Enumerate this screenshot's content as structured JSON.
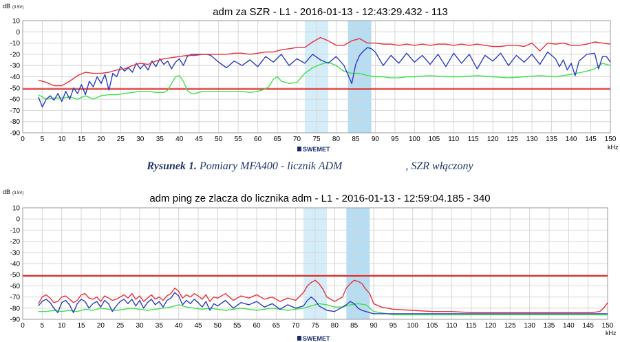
{
  "caption": {
    "prefix": "Rysunek 1.",
    "text": "Pomiary MFA400 - licznik ADM",
    "suffix": ", SZR włączony"
  },
  "logo_text": "SWEMET",
  "colors": {
    "max": "#e8303a",
    "actual": "#2a3cc0",
    "min": "#3ee04a",
    "threshold": "#e02020",
    "band_light": "#cdeaf7",
    "band_dark": "#a9d7f0",
    "grid": "#d6d6d6"
  },
  "chart_data": [
    {
      "type": "line",
      "title": "adm za SZR - L1 - 2016-01-13  - 12:43:29.432 - 113",
      "ylabel": "dB",
      "ylabel_sub": "(3.5V)",
      "xlabel": "kHz",
      "xlim": [
        0,
        150
      ],
      "ylim": [
        -90,
        10
      ],
      "xticks": [
        0,
        5,
        10,
        15,
        20,
        25,
        30,
        35,
        40,
        45,
        50,
        55,
        60,
        65,
        70,
        75,
        80,
        85,
        90,
        95,
        100,
        105,
        110,
        115,
        120,
        125,
        130,
        135,
        140,
        145,
        150
      ],
      "yticks": [
        10,
        0,
        -10,
        -20,
        -30,
        -40,
        -50,
        -60,
        -70,
        -80,
        -90
      ],
      "grid": true,
      "threshold": -51,
      "bands": [
        [
          72,
          78
        ],
        [
          83,
          89
        ]
      ],
      "series": [
        {
          "key": "max",
          "x": [
            4,
            6,
            8,
            10,
            12,
            14,
            16,
            18,
            20,
            22,
            24,
            26,
            28,
            30,
            32,
            34,
            36,
            38,
            40,
            42,
            44,
            46,
            48,
            50,
            52,
            54,
            56,
            58,
            60,
            62,
            64,
            66,
            68,
            70,
            72,
            74,
            76,
            78,
            80,
            82,
            84,
            86,
            88,
            90,
            92,
            94,
            96,
            98,
            100,
            102,
            104,
            106,
            108,
            110,
            112,
            114,
            116,
            118,
            120,
            122,
            124,
            126,
            128,
            130,
            132,
            134,
            136,
            138,
            140,
            142,
            144,
            146,
            148,
            150
          ],
          "y": [
            -43,
            -45,
            -48,
            -48,
            -44,
            -39,
            -36,
            -37,
            -37,
            -36,
            -34,
            -33,
            -30,
            -28,
            -29,
            -26,
            -24,
            -23,
            -22,
            -21,
            -21,
            -20,
            -20,
            -20,
            -20,
            -19,
            -19,
            -20,
            -19,
            -18,
            -18,
            -16,
            -15,
            -14,
            -14,
            -9,
            -5,
            -8,
            -12,
            -12,
            -8,
            -6,
            -10,
            -10,
            -11,
            -11,
            -12,
            -11,
            -12,
            -11,
            -12,
            -11,
            -11,
            -12,
            -11,
            -12,
            -11,
            -12,
            -13,
            -13,
            -12,
            -12,
            -13,
            -10,
            -17,
            -10,
            -11,
            -10,
            -12,
            -12,
            -11,
            -9,
            -10,
            -11
          ]
        },
        {
          "key": "actual",
          "x": [
            4,
            5,
            6,
            7,
            8,
            9,
            10,
            11,
            12,
            13,
            14,
            15,
            16,
            17,
            18,
            19,
            20,
            21,
            22,
            23,
            24,
            25,
            26,
            27,
            28,
            29,
            30,
            31,
            32,
            33,
            34,
            35,
            36,
            37,
            38,
            39,
            40,
            41,
            42,
            43,
            44,
            45,
            46,
            47,
            48,
            49,
            50,
            52,
            54,
            56,
            58,
            60,
            62,
            64,
            66,
            68,
            70,
            72,
            74,
            76,
            78,
            80,
            82,
            83,
            84,
            85,
            86,
            87,
            88,
            89,
            90,
            92,
            94,
            96,
            98,
            100,
            102,
            104,
            106,
            108,
            110,
            112,
            114,
            116,
            118,
            120,
            122,
            124,
            126,
            128,
            130,
            132,
            134,
            136,
            137,
            138,
            139,
            140,
            141,
            142,
            144,
            146,
            147,
            148,
            149,
            150
          ],
          "y": [
            -58,
            -67,
            -60,
            -57,
            -61,
            -55,
            -62,
            -53,
            -60,
            -50,
            -55,
            -47,
            -56,
            -44,
            -49,
            -40,
            -46,
            -38,
            -52,
            -37,
            -40,
            -31,
            -35,
            -32,
            -36,
            -28,
            -33,
            -29,
            -34,
            -26,
            -31,
            -24,
            -29,
            -26,
            -33,
            -27,
            -24,
            -30,
            -22,
            -20,
            -20,
            -20,
            -20,
            -20,
            -21,
            -24,
            -27,
            -32,
            -26,
            -30,
            -25,
            -31,
            -22,
            -27,
            -20,
            -30,
            -24,
            -28,
            -20,
            -25,
            -28,
            -22,
            -30,
            -38,
            -46,
            -29,
            -21,
            -17,
            -14,
            -15,
            -18,
            -30,
            -21,
            -28,
            -19,
            -27,
            -21,
            -29,
            -20,
            -31,
            -19,
            -28,
            -20,
            -33,
            -21,
            -26,
            -19,
            -30,
            -21,
            -27,
            -20,
            -29,
            -18,
            -24,
            -31,
            -25,
            -34,
            -28,
            -39,
            -26,
            -20,
            -19,
            -33,
            -22,
            -22,
            -27
          ]
        },
        {
          "key": "min",
          "x": [
            4,
            6,
            8,
            10,
            12,
            14,
            16,
            18,
            20,
            22,
            24,
            26,
            28,
            30,
            32,
            34,
            36,
            37,
            38,
            39,
            40,
            41,
            42,
            43,
            44,
            46,
            48,
            50,
            52,
            54,
            56,
            58,
            60,
            62,
            63,
            64,
            65,
            66,
            68,
            70,
            72,
            74,
            76,
            78,
            80,
            82,
            84,
            86,
            88,
            90,
            92,
            94,
            96,
            98,
            100,
            104,
            108,
            112,
            116,
            120,
            124,
            128,
            132,
            136,
            140,
            144,
            146,
            148,
            150
          ],
          "y": [
            -56,
            -60,
            -59,
            -59,
            -58,
            -60,
            -57,
            -60,
            -57,
            -56,
            -56,
            -55,
            -54,
            -53,
            -53,
            -54,
            -54,
            -52,
            -46,
            -40,
            -39,
            -44,
            -52,
            -55,
            -55,
            -53,
            -53,
            -53,
            -53,
            -53,
            -53,
            -54,
            -53,
            -51,
            -48,
            -42,
            -40,
            -44,
            -46,
            -45,
            -37,
            -32,
            -29,
            -27,
            -30,
            -35,
            -37,
            -37,
            -39,
            -40,
            -40,
            -41,
            -41,
            -40,
            -40,
            -39,
            -40,
            -40,
            -39,
            -40,
            -41,
            -40,
            -39,
            -40,
            -38,
            -35,
            -33,
            -28,
            -30
          ]
        }
      ]
    },
    {
      "type": "line",
      "title": "adm ping ze zlacza do licznika adm - L1 - 2016-01-13  - 12:59:04.185 - 340",
      "ylabel": "dB",
      "ylabel_sub": "(3.5V)",
      "xlabel": "kHz",
      "xlim": [
        0,
        150
      ],
      "ylim": [
        -90,
        10
      ],
      "xticks": [
        0,
        5,
        10,
        15,
        20,
        25,
        30,
        35,
        40,
        45,
        50,
        55,
        60,
        65,
        70,
        75,
        80,
        85,
        90,
        95,
        100,
        105,
        110,
        115,
        120,
        125,
        130,
        135,
        140,
        145,
        150
      ],
      "yticks": [
        10,
        0,
        -10,
        -20,
        -30,
        -40,
        -50,
        -60,
        -70,
        -80,
        -90
      ],
      "grid": true,
      "threshold": -51,
      "bands": [
        [
          72,
          78
        ],
        [
          83,
          89
        ]
      ],
      "series": [
        {
          "key": "max",
          "x": [
            4,
            5,
            6,
            7,
            8,
            9,
            10,
            11,
            12,
            13,
            14,
            15,
            16,
            17,
            18,
            19,
            20,
            21,
            22,
            23,
            24,
            25,
            26,
            27,
            28,
            29,
            30,
            31,
            32,
            33,
            34,
            35,
            36,
            37,
            38,
            39,
            40,
            41,
            42,
            43,
            44,
            45,
            46,
            47,
            48,
            49,
            50,
            52,
            54,
            56,
            58,
            60,
            62,
            64,
            66,
            68,
            70,
            72,
            73,
            74,
            75,
            76,
            77,
            78,
            80,
            82,
            83,
            84,
            85,
            86,
            87,
            88,
            89,
            90,
            92,
            95,
            100,
            105,
            110,
            115,
            120,
            125,
            130,
            135,
            140,
            145,
            146,
            148,
            149,
            150
          ],
          "y": [
            -76,
            -70,
            -68,
            -71,
            -75,
            -74,
            -70,
            -69,
            -72,
            -75,
            -73,
            -68,
            -67,
            -71,
            -72,
            -70,
            -74,
            -69,
            -71,
            -73,
            -72,
            -70,
            -68,
            -71,
            -67,
            -72,
            -69,
            -74,
            -71,
            -68,
            -72,
            -70,
            -73,
            -69,
            -67,
            -62,
            -65,
            -71,
            -68,
            -70,
            -67,
            -69,
            -72,
            -68,
            -74,
            -70,
            -71,
            -67,
            -73,
            -69,
            -71,
            -68,
            -72,
            -70,
            -74,
            -71,
            -73,
            -66,
            -60,
            -57,
            -55,
            -58,
            -63,
            -70,
            -74,
            -70,
            -62,
            -58,
            -55,
            -56,
            -58,
            -63,
            -67,
            -76,
            -79,
            -81,
            -82,
            -83,
            -83,
            -84,
            -84,
            -84,
            -84,
            -84,
            -84,
            -84,
            -84,
            -83,
            -80,
            -75
          ]
        },
        {
          "key": "actual",
          "x": [
            4,
            5,
            6,
            7,
            8,
            9,
            10,
            11,
            12,
            13,
            14,
            15,
            16,
            17,
            18,
            19,
            20,
            21,
            22,
            23,
            24,
            25,
            26,
            27,
            28,
            29,
            30,
            31,
            32,
            33,
            34,
            35,
            36,
            37,
            38,
            39,
            40,
            41,
            42,
            43,
            44,
            45,
            46,
            47,
            48,
            49,
            50,
            52,
            54,
            56,
            58,
            60,
            62,
            64,
            66,
            68,
            70,
            72,
            73,
            74,
            75,
            76,
            77,
            78,
            80,
            82,
            83,
            84,
            85,
            86,
            87,
            88,
            89,
            90,
            92,
            95,
            100,
            110,
            120,
            130,
            140,
            150
          ],
          "y": [
            -78,
            -74,
            -72,
            -75,
            -80,
            -84,
            -75,
            -73,
            -77,
            -84,
            -76,
            -72,
            -74,
            -80,
            -76,
            -74,
            -79,
            -73,
            -76,
            -83,
            -78,
            -74,
            -72,
            -76,
            -72,
            -78,
            -73,
            -80,
            -75,
            -72,
            -77,
            -74,
            -79,
            -73,
            -71,
            -66,
            -69,
            -77,
            -73,
            -76,
            -72,
            -75,
            -79,
            -74,
            -82,
            -76,
            -78,
            -73,
            -80,
            -75,
            -77,
            -74,
            -79,
            -76,
            -81,
            -77,
            -80,
            -78,
            -73,
            -70,
            -73,
            -78,
            -80,
            -82,
            -83,
            -79,
            -77,
            -74,
            -76,
            -80,
            -82,
            -83,
            -84,
            -85,
            -85,
            -85,
            -85,
            -85,
            -85,
            -85,
            -85,
            -85
          ]
        },
        {
          "key": "min",
          "x": [
            4,
            6,
            8,
            10,
            12,
            14,
            16,
            18,
            20,
            22,
            24,
            26,
            28,
            30,
            32,
            34,
            36,
            38,
            40,
            42,
            44,
            46,
            48,
            50,
            52,
            54,
            56,
            58,
            60,
            62,
            64,
            66,
            68,
            70,
            72,
            74,
            76,
            78,
            80,
            82,
            84,
            86,
            88,
            90,
            95,
            100,
            110,
            120,
            130,
            140,
            150
          ],
          "y": [
            -83,
            -83,
            -82,
            -83,
            -82,
            -83,
            -81,
            -82,
            -80,
            -81,
            -82,
            -81,
            -80,
            -81,
            -82,
            -81,
            -80,
            -79,
            -77,
            -79,
            -80,
            -81,
            -80,
            -81,
            -82,
            -81,
            -80,
            -81,
            -82,
            -81,
            -80,
            -81,
            -82,
            -81,
            -80,
            -78,
            -76,
            -77,
            -79,
            -79,
            -77,
            -76,
            -77,
            -83,
            -86,
            -86,
            -86,
            -86,
            -86,
            -86,
            -86
          ]
        }
      ]
    }
  ]
}
